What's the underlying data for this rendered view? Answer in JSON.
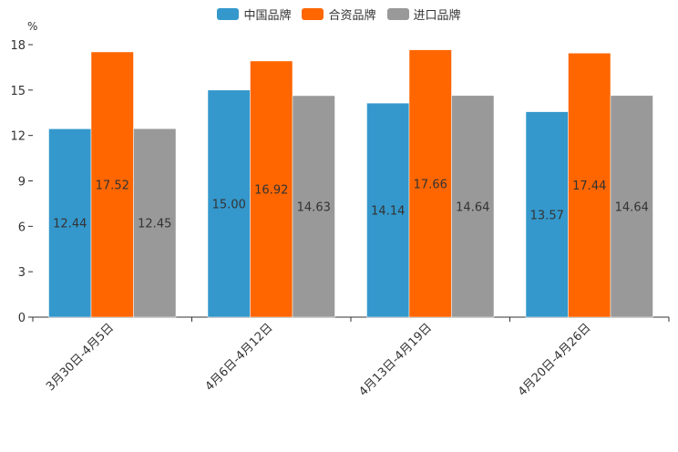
{
  "chart_data": {
    "type": "bar",
    "title": "",
    "unit": "%",
    "xlabel": "",
    "ylabel": "%",
    "ylim": [
      0,
      18
    ],
    "yticks": [
      0,
      3,
      6,
      9,
      12,
      15,
      18
    ],
    "categories": [
      "3月30日-4月5日",
      "4月6日-4月12日",
      "4月13日-4月19日",
      "4月20日-4月26日"
    ],
    "series": [
      {
        "name": "中国品牌",
        "color": "#3498CC",
        "values": [
          12.44,
          15.0,
          14.14,
          13.57
        ]
      },
      {
        "name": "合资品牌",
        "color": "#FF6600",
        "values": [
          17.52,
          16.92,
          17.66,
          17.44
        ]
      },
      {
        "name": "进口品牌",
        "color": "#999999",
        "values": [
          12.45,
          14.63,
          14.64,
          14.64
        ]
      }
    ],
    "value_labels": [
      [
        "12.44",
        "15.00",
        "14.14",
        "13.57"
      ],
      [
        "17.52",
        "16.92",
        "17.66",
        "17.44"
      ],
      [
        "12.45",
        "14.63",
        "14.64",
        "14.64"
      ]
    ],
    "legend_position": "top-center",
    "grid": false
  }
}
